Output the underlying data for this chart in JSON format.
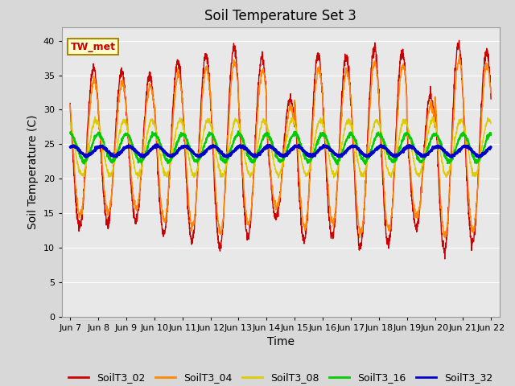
{
  "title": "Soil Temperature Set 3",
  "xlabel": "Time",
  "ylabel": "Soil Temperature (C)",
  "ylim": [
    0,
    42
  ],
  "yticks": [
    0,
    5,
    10,
    15,
    20,
    25,
    30,
    35,
    40
  ],
  "colors": {
    "SoilT3_02": "#cc0000",
    "SoilT3_04": "#ff8800",
    "SoilT3_08": "#ddcc00",
    "SoilT3_16": "#00cc00",
    "SoilT3_32": "#0000cc"
  },
  "annotation_text": "TW_met",
  "annotation_color": "#cc0000",
  "annotation_bg": "#ffffcc",
  "annotation_border": "#aa8800",
  "bg_color": "#d8d8d8",
  "plot_bg": "#e8e8e8",
  "n_days": 15,
  "base_mean": 24.5,
  "points_per_day": 144
}
